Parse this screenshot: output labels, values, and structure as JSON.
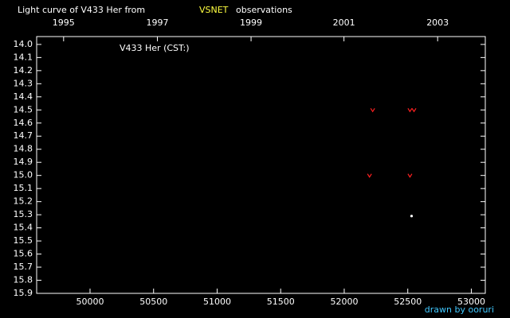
{
  "chart_data": {
    "type": "scatter",
    "title": "Light curve of V433 Her from",
    "title_highlight": "VSNET",
    "title_highlight_color": "#ffff40",
    "title_end": "observations",
    "annotation": "V433 Her (CST:)",
    "credit": "drawn by ooruri",
    "credit_color": "#40c8ff",
    "background": "#000000",
    "axis_color": "#ffffff",
    "xlim": [
      49580,
      53110
    ],
    "xticks": [
      50000,
      50500,
      51000,
      51500,
      52000,
      52500,
      53000
    ],
    "x2ticks": [
      {
        "value": 49792,
        "label": "1995"
      },
      {
        "value": 50530,
        "label": "1997"
      },
      {
        "value": 51267,
        "label": "1999"
      },
      {
        "value": 51998,
        "label": "2001"
      },
      {
        "value": 52735,
        "label": "2003"
      }
    ],
    "ylim": [
      15.9,
      13.94
    ],
    "yticks": [
      {
        "value": 14.0,
        "label": "14.0"
      },
      14.1,
      14.2,
      14.3,
      14.4,
      14.5,
      14.6,
      14.7,
      14.8,
      14.9,
      {
        "value": 15.0,
        "label": "15.0"
      },
      15.1,
      15.2,
      15.3,
      15.4,
      15.5,
      15.6,
      15.7,
      15.8,
      15.9
    ],
    "series": [
      {
        "color": "#ff2020",
        "marker": "v",
        "x": [
          52224,
          52517,
          52549,
          52199,
          52517
        ],
        "values": [
          14.5,
          14.5,
          14.5,
          15.0,
          15.0
        ]
      },
      {
        "color": "#ffffff",
        "marker": "dot",
        "x": [
          52530
        ],
        "values": [
          15.31
        ]
      }
    ]
  }
}
